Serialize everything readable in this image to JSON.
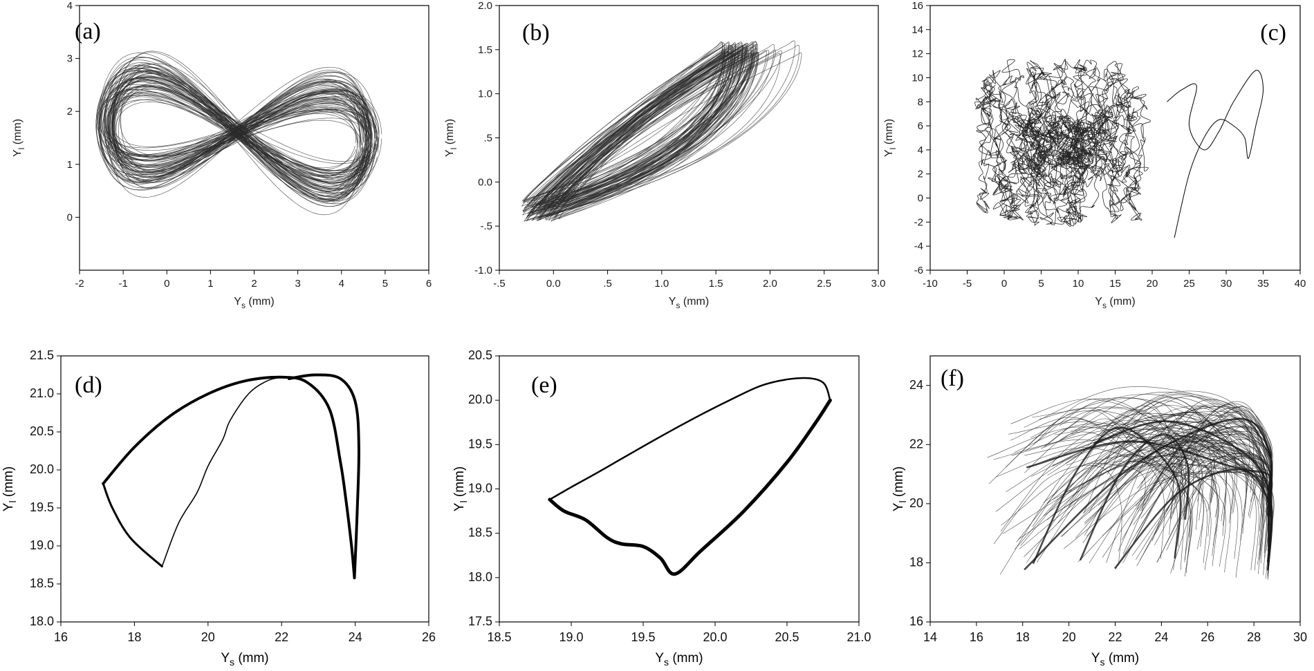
{
  "chart_data": [
    {
      "type": "line",
      "panel": "(a)",
      "xlabel": "Ys (mm)",
      "xlabel_main": "Y",
      "xlabel_sub": "s",
      "xlabel_unit": " (mm)",
      "ylabel_main": "Y",
      "ylabel_sub": "l",
      "ylabel_unit": " (mm)",
      "xlim": [
        -2,
        6
      ],
      "ylim": [
        -1,
        4
      ],
      "xticks": [
        -2,
        -1,
        0,
        1,
        2,
        3,
        4,
        5,
        6
      ],
      "xtick_labels": [
        "-2",
        "-1",
        "0",
        "1",
        "2",
        "3",
        "4",
        "5",
        "6"
      ],
      "yticks": [
        0,
        1,
        2,
        3,
        4
      ],
      "ytick_labels": [
        "0",
        "1",
        "2",
        "3",
        "4"
      ],
      "attractor": {
        "shape": "figure-eight",
        "cx": 1.65,
        "cy": 1.6,
        "ax": 3.0,
        "ay": 0.8,
        "loops": 70,
        "phase_jitter": 0.08,
        "amp_jitter": 0.07,
        "x_range_observed": [
          -1.5,
          4.9
        ],
        "y_range_observed": [
          0.2,
          2.9
        ]
      },
      "colors": {
        "line": "#2b2b2b"
      }
    },
    {
      "type": "line",
      "panel": "(b)",
      "xlabel_main": "Y",
      "xlabel_sub": "s",
      "xlabel_unit": " (mm)",
      "ylabel_main": "Y",
      "ylabel_sub": "l",
      "ylabel_unit": " (mm)",
      "xlim": [
        -0.5,
        3.0
      ],
      "ylim": [
        -1.0,
        2.0
      ],
      "xticks": [
        -0.5,
        0.0,
        0.5,
        1.0,
        1.5,
        2.0,
        2.5,
        3.0
      ],
      "xtick_labels": [
        "-.5",
        "0.0",
        ".5",
        "1.0",
        "1.5",
        "2.0",
        "2.5",
        "3.0"
      ],
      "yticks": [
        -1.0,
        -0.5,
        0.0,
        0.5,
        1.0,
        1.5,
        2.0
      ],
      "ytick_labels": [
        "-1.0",
        "-.5",
        "0.0",
        ".5",
        "1.0",
        "1.5",
        "2.0"
      ],
      "attractor": {
        "shape": "tilted-leaf",
        "x_start": -0.35,
        "y_start": -0.45,
        "x_peak": 1.7,
        "y_peak": 1.6,
        "x_max": 2.45,
        "loops": 80
      },
      "colors": {
        "line": "#2b2b2b"
      }
    },
    {
      "type": "line",
      "panel": "(c)",
      "xlabel_main": "Y",
      "xlabel_sub": "s",
      "xlabel_unit": " (mm)",
      "ylabel_main": "Y",
      "ylabel_sub": "l",
      "ylabel_unit": " (mm)",
      "xlim": [
        -10,
        40
      ],
      "ylim": [
        -6,
        16
      ],
      "xticks": [
        -10,
        -5,
        0,
        5,
        10,
        15,
        20,
        25,
        30,
        35,
        40
      ],
      "xtick_labels": [
        "-10",
        "-5",
        "0",
        "5",
        "10",
        "15",
        "20",
        "25",
        "30",
        "35",
        "40"
      ],
      "yticks": [
        -6,
        -4,
        -2,
        0,
        2,
        4,
        6,
        8,
        10,
        12,
        14,
        16
      ],
      "ytick_labels": [
        "-6",
        "-4",
        "-2",
        "0",
        "2",
        "4",
        "6",
        "8",
        "10",
        "12",
        "14",
        "16"
      ],
      "attractor": {
        "shape": "chaotic-cloud",
        "cx": 7,
        "cy": 5,
        "sx": 6,
        "sy": 3.5,
        "x_range_observed": [
          -4.5,
          35
        ],
        "y_range_observed": [
          -3.8,
          13.8
        ],
        "excursion_points": [
          [
            22,
            8
          ],
          [
            26,
            9
          ],
          [
            28,
            5
          ],
          [
            30,
            9
          ],
          [
            34,
            10.5
          ],
          [
            35,
            9
          ],
          [
            33,
            3.3
          ],
          [
            32,
            6
          ],
          [
            30,
            6
          ]
        ]
      },
      "colors": {
        "line": "#000000"
      }
    },
    {
      "type": "line",
      "panel": "(d)",
      "xlabel_main": "Y",
      "xlabel_sub": "s",
      "xlabel_unit": " (mm)",
      "ylabel_main": "Y",
      "ylabel_sub": "l",
      "ylabel_unit": " (mm)",
      "xlim": [
        16,
        26
      ],
      "ylim": [
        18.0,
        21.5
      ],
      "xticks": [
        16,
        18,
        20,
        22,
        24,
        26
      ],
      "xtick_labels": [
        "16",
        "18",
        "20",
        "22",
        "24",
        "26"
      ],
      "yticks": [
        18.0,
        18.5,
        19.0,
        19.5,
        20.0,
        20.5,
        21.0,
        21.5
      ],
      "ytick_labels": [
        "18.0",
        "18.5",
        "19.0",
        "19.5",
        "20.0",
        "20.5",
        "21.0",
        "21.5"
      ],
      "curves": [
        {
          "name": "outer",
          "width": 4,
          "points": [
            [
              17.15,
              19.82
            ],
            [
              18.0,
              20.3
            ],
            [
              19.0,
              20.72
            ],
            [
              20.0,
              21.0
            ],
            [
              21.0,
              21.17
            ],
            [
              22.0,
              21.22
            ],
            [
              22.7,
              21.15
            ],
            [
              23.3,
              20.8
            ],
            [
              23.6,
              20.1
            ],
            [
              23.75,
              19.6
            ],
            [
              23.9,
              19.0
            ],
            [
              23.98,
              18.58
            ]
          ]
        },
        {
          "name": "return",
          "width": 4,
          "points": [
            [
              23.98,
              18.58
            ],
            [
              24.05,
              19.4
            ],
            [
              24.1,
              20.3
            ],
            [
              24.0,
              20.9
            ],
            [
              23.6,
              21.2
            ],
            [
              22.9,
              21.25
            ],
            [
              22.2,
              21.2
            ]
          ]
        },
        {
          "name": "lower",
          "width": 3,
          "points": [
            [
              17.15,
              19.82
            ],
            [
              17.4,
              19.5
            ],
            [
              17.9,
              19.1
            ],
            [
              18.75,
              18.73
            ]
          ]
        },
        {
          "name": "inner",
          "width": 1.6,
          "points": [
            [
              18.75,
              18.73
            ],
            [
              19.2,
              19.3
            ],
            [
              19.7,
              19.7
            ],
            [
              20.0,
              20.05
            ],
            [
              20.4,
              20.4
            ],
            [
              20.6,
              20.65
            ],
            [
              21.1,
              21.0
            ],
            [
              21.6,
              21.17
            ],
            [
              22.0,
              21.22
            ]
          ]
        }
      ],
      "colors": {
        "line": "#000000"
      }
    },
    {
      "type": "line",
      "panel": "(e)",
      "xlabel_main": "Y",
      "xlabel_sub": "s",
      "xlabel_unit": " (mm)",
      "ylabel_main": "Y",
      "ylabel_sub": "l",
      "ylabel_unit": " (mm)",
      "xlim": [
        18.5,
        21.0
      ],
      "ylim": [
        17.5,
        20.5
      ],
      "xticks": [
        18.5,
        19.0,
        19.5,
        20.0,
        20.5,
        21.0
      ],
      "xtick_labels": [
        "18.5",
        "19.0",
        "19.5",
        "20.0",
        "20.5",
        "21.0"
      ],
      "yticks": [
        17.5,
        18.0,
        18.5,
        19.0,
        19.5,
        20.0,
        20.5
      ],
      "ytick_labels": [
        "17.5",
        "18.0",
        "18.5",
        "19.0",
        "19.5",
        "20.0",
        "20.5"
      ],
      "curves": [
        {
          "name": "upper",
          "width": 2.5,
          "points": [
            [
              18.85,
              18.88
            ],
            [
              19.0,
              19.02
            ],
            [
              19.2,
              19.2
            ],
            [
              19.5,
              19.48
            ],
            [
              19.8,
              19.75
            ],
            [
              20.1,
              20.0
            ],
            [
              20.35,
              20.18
            ],
            [
              20.6,
              20.25
            ],
            [
              20.75,
              20.2
            ],
            [
              20.8,
              20.0
            ]
          ]
        },
        {
          "name": "lower",
          "width": 5,
          "points": [
            [
              18.85,
              18.88
            ],
            [
              18.95,
              18.75
            ],
            [
              19.1,
              18.65
            ],
            [
              19.25,
              18.45
            ],
            [
              19.35,
              18.38
            ],
            [
              19.5,
              18.35
            ],
            [
              19.62,
              18.22
            ],
            [
              19.72,
              18.04
            ],
            [
              19.9,
              18.3
            ],
            [
              20.2,
              18.75
            ],
            [
              20.5,
              19.3
            ],
            [
              20.7,
              19.75
            ],
            [
              20.8,
              20.0
            ]
          ]
        }
      ],
      "colors": {
        "line": "#000000"
      }
    },
    {
      "type": "line",
      "panel": "(f)",
      "xlabel_main": "Y",
      "xlabel_sub": "s",
      "xlabel_unit": " (mm)",
      "ylabel_main": "Y",
      "ylabel_sub": "l",
      "ylabel_unit": " (mm)",
      "xlim": [
        14,
        30
      ],
      "ylim": [
        16,
        25
      ],
      "xticks": [
        14,
        16,
        18,
        20,
        22,
        24,
        26,
        28,
        30
      ],
      "xtick_labels": [
        "14",
        "16",
        "18",
        "20",
        "22",
        "24",
        "26",
        "28",
        "30"
      ],
      "yticks": [
        16,
        18,
        20,
        22,
        24
      ],
      "ytick_labels": [
        "16",
        "18",
        "20",
        "22",
        "24"
      ],
      "attractor": {
        "shape": "arched-bundle",
        "x_range_observed": [
          16.3,
          28.8
        ],
        "y_range_observed": [
          17.3,
          23.6
        ],
        "arch_apex": [
          26.5,
          23.3
        ],
        "left_end": [
          16.5,
          19.2
        ]
      },
      "colors": {
        "line": "#1a1a1a"
      }
    }
  ]
}
